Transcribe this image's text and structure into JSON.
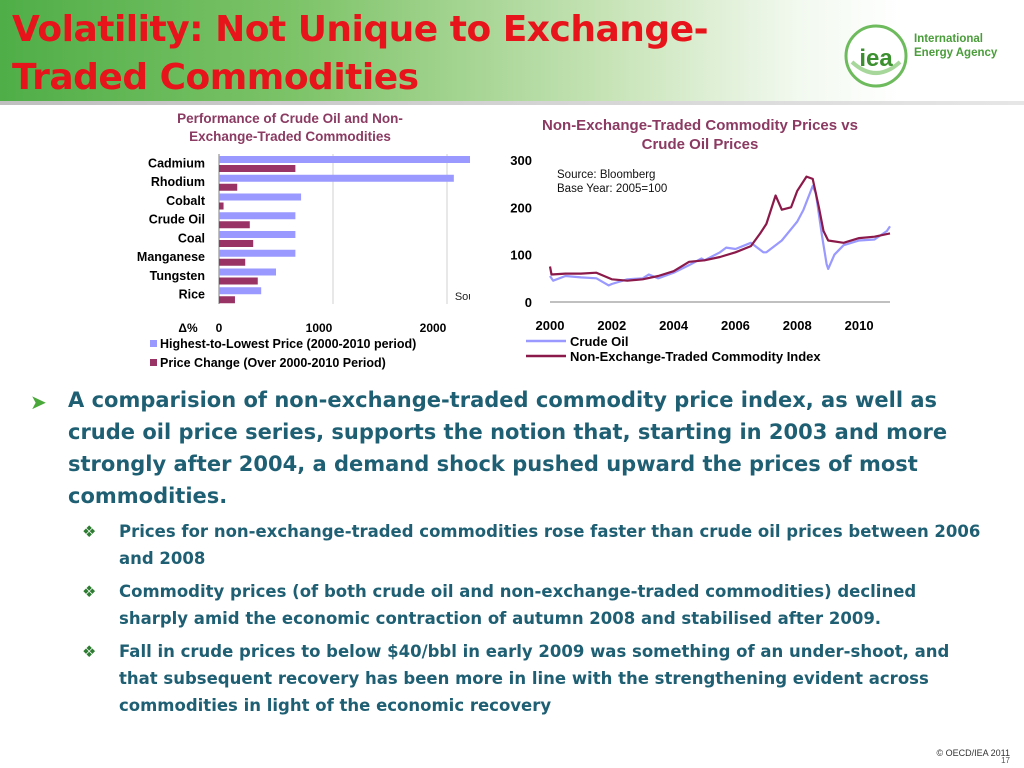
{
  "slide": {
    "title": "Volatility: Not Unique to Exchange-Traded Commodities",
    "logo_text_line1": "International",
    "logo_text_line2": "Energy Agency",
    "logo_mark": "iea",
    "footer": "© OECD/IEA 2011",
    "page_number": "17"
  },
  "chart_data": [
    {
      "type": "bar",
      "orientation": "horizontal",
      "title": "Performance of Crude Oil  and Non-Exchange-Traded Commodities",
      "categories": [
        "Cadmium",
        "Rhodium",
        "Cobalt",
        "Crude Oil",
        "Coal",
        "Manganese",
        "Tungsten",
        "Rice"
      ],
      "series": [
        {
          "name": "Highest-to-Lowest Price (2000-2010 period)",
          "color": "#9999ff",
          "values": [
            2880,
            2060,
            720,
            670,
            670,
            670,
            500,
            370
          ]
        },
        {
          "name": "Price Change (Over 2000-2010 Period)",
          "color": "#993366",
          "values": [
            670,
            160,
            40,
            270,
            300,
            230,
            340,
            140
          ]
        }
      ],
      "xlabel": "Δ%",
      "xlim": [
        0,
        3000
      ],
      "xticks": [
        "0",
        "1000",
        "2000",
        "3000"
      ],
      "annotation": "Source: Bloomberg",
      "legend_position": "bottom"
    },
    {
      "type": "line",
      "title": "Non-Exchange-Traded Commodity Prices vs Crude Oil Prices",
      "annotation_line1": "Source: Bloomberg",
      "annotation_line2": "Base Year:  2005=100",
      "xlim": [
        2000,
        2011
      ],
      "ylim": [
        0,
        300
      ],
      "xticks": [
        "2000",
        "2002",
        "2004",
        "2006",
        "2008",
        "2010"
      ],
      "yticks": [
        "0",
        "100",
        "200",
        "300"
      ],
      "legend_position": "bottom",
      "series": [
        {
          "name": "Crude Oil",
          "color": "#9999ff",
          "x": [
            2000,
            2000.1,
            2000.5,
            2001,
            2001.5,
            2001.9,
            2002,
            2002.5,
            2003,
            2003.2,
            2003.5,
            2004,
            2004.5,
            2004.9,
            2005,
            2005.5,
            2005.7,
            2006,
            2006.5,
            2006.9,
            2007,
            2007.5,
            2007.9,
            2008,
            2008.2,
            2008.5,
            2008.6,
            2008.8,
            2008.95,
            2009,
            2009.2,
            2009.5,
            2010,
            2010.5,
            2010.9,
            2011
          ],
          "y": [
            55,
            45,
            55,
            52,
            50,
            35,
            38,
            48,
            50,
            58,
            50,
            62,
            78,
            92,
            88,
            105,
            115,
            112,
            125,
            105,
            105,
            130,
            162,
            170,
            195,
            245,
            230,
            140,
            80,
            70,
            100,
            120,
            130,
            132,
            150,
            160
          ]
        },
        {
          "name": "Non-Exchange-Traded Commodity Index",
          "color": "#8b1a4a",
          "x": [
            2000,
            2000.05,
            2000.5,
            2001,
            2001.5,
            2002,
            2002.5,
            2003,
            2003.5,
            2004,
            2004.5,
            2005,
            2005.5,
            2006,
            2006.5,
            2006.8,
            2007,
            2007.3,
            2007.5,
            2007.8,
            2008,
            2008.3,
            2008.5,
            2008.7,
            2008.85,
            2009,
            2009.5,
            2010,
            2010.5,
            2011
          ],
          "y": [
            75,
            58,
            60,
            60,
            62,
            48,
            45,
            48,
            55,
            65,
            85,
            88,
            95,
            105,
            118,
            145,
            165,
            225,
            195,
            200,
            235,
            265,
            260,
            200,
            150,
            130,
            125,
            135,
            138,
            145
          ]
        }
      ]
    }
  ],
  "bullets": [
    {
      "text": "A comparision of non-exchange-traded commodity price index, as well as crude oil price series, supports the notion that, starting in 2003 and more strongly after 2004, a demand shock pushed upward the prices of most commodities.",
      "sub": [
        "Prices for non-exchange-traded commodities rose faster than crude oil prices between 2006 and 2008",
        "Commodity prices (of both crude oil and non-exchange-traded commodities) declined sharply amid the economic contraction of autumn 2008 and stabilised after 2009.",
        "Fall in crude prices to below $40/bbl in early 2009 was something of an under-shoot, and that subsequent recovery has been more in line with the strengthening evident across commodities in light of the economic recovery"
      ]
    }
  ]
}
